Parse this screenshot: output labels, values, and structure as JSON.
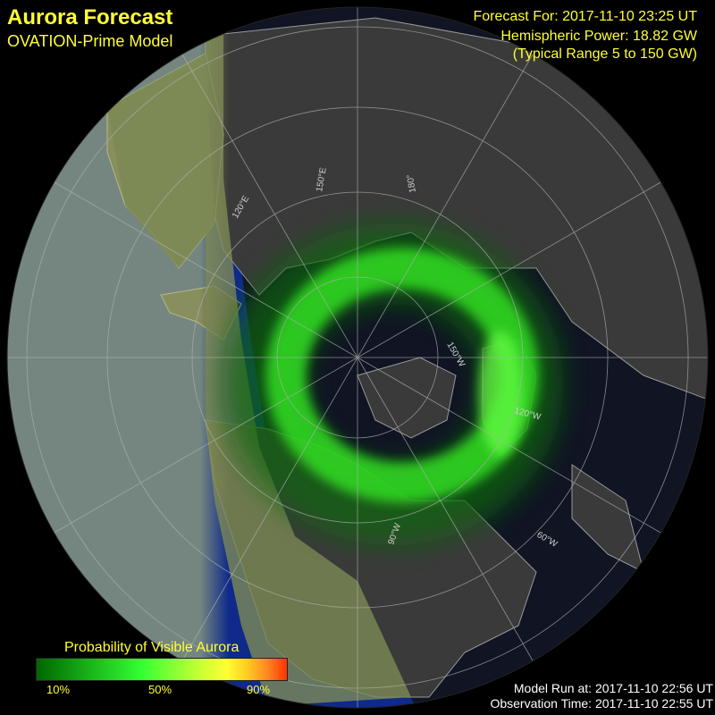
{
  "header": {
    "title": "Aurora Forecast",
    "subtitle": "OVATION-Prime Model"
  },
  "info": {
    "forecast_for": "Forecast For: 2017-11-10 23:25 UT",
    "hemispheric_power": "Hemispheric Power: 18.82 GW",
    "typical_range": "(Typical Range 5 to 150 GW)"
  },
  "legend": {
    "title": "Probability of Visible Aurora",
    "labels": [
      "10%",
      "50%",
      "90%"
    ]
  },
  "map": {
    "meridian_labels": [
      "120°E",
      "150°E",
      "180°",
      "150°W",
      "120°W",
      "90°W",
      "60°W"
    ]
  },
  "footer": {
    "model_run": "Model Run at: 2017-11-10 22:56 UT",
    "observation_time": "Observation Time: 2017-11-10 22:55 UT"
  }
}
